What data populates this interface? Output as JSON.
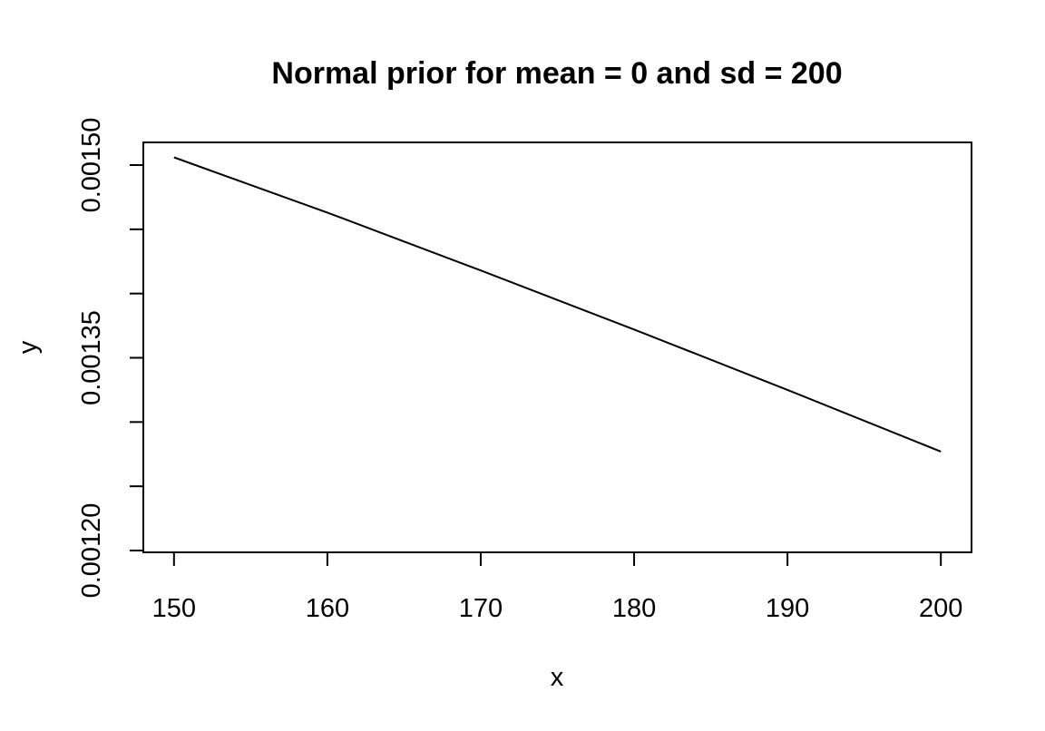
{
  "chart_data": {
    "type": "line",
    "title": "Normal prior for mean = 0 and sd = 200",
    "xlabel": "x",
    "ylabel": "y",
    "xlim": [
      148,
      202
    ],
    "ylim": [
      0.0012,
      0.0015
    ],
    "x_ticks": [
      150,
      160,
      170,
      180,
      190,
      200
    ],
    "x_tick_labels": [
      "150",
      "160",
      "170",
      "180",
      "190",
      "200"
    ],
    "y_ticks": [
      0.0012,
      0.00125,
      0.0013,
      0.00135,
      0.0014,
      0.00145,
      0.0015
    ],
    "y_tick_labels": [
      "0.00120",
      "",
      "",
      "0.00135",
      "",
      "",
      "0.00150"
    ],
    "grid": false,
    "series": [
      {
        "x": [
          150,
          160,
          170,
          180,
          190,
          200
        ],
        "y": [
          0.001506,
          0.001463,
          0.001418,
          0.001372,
          0.001325,
          0.001277
        ]
      }
    ]
  }
}
